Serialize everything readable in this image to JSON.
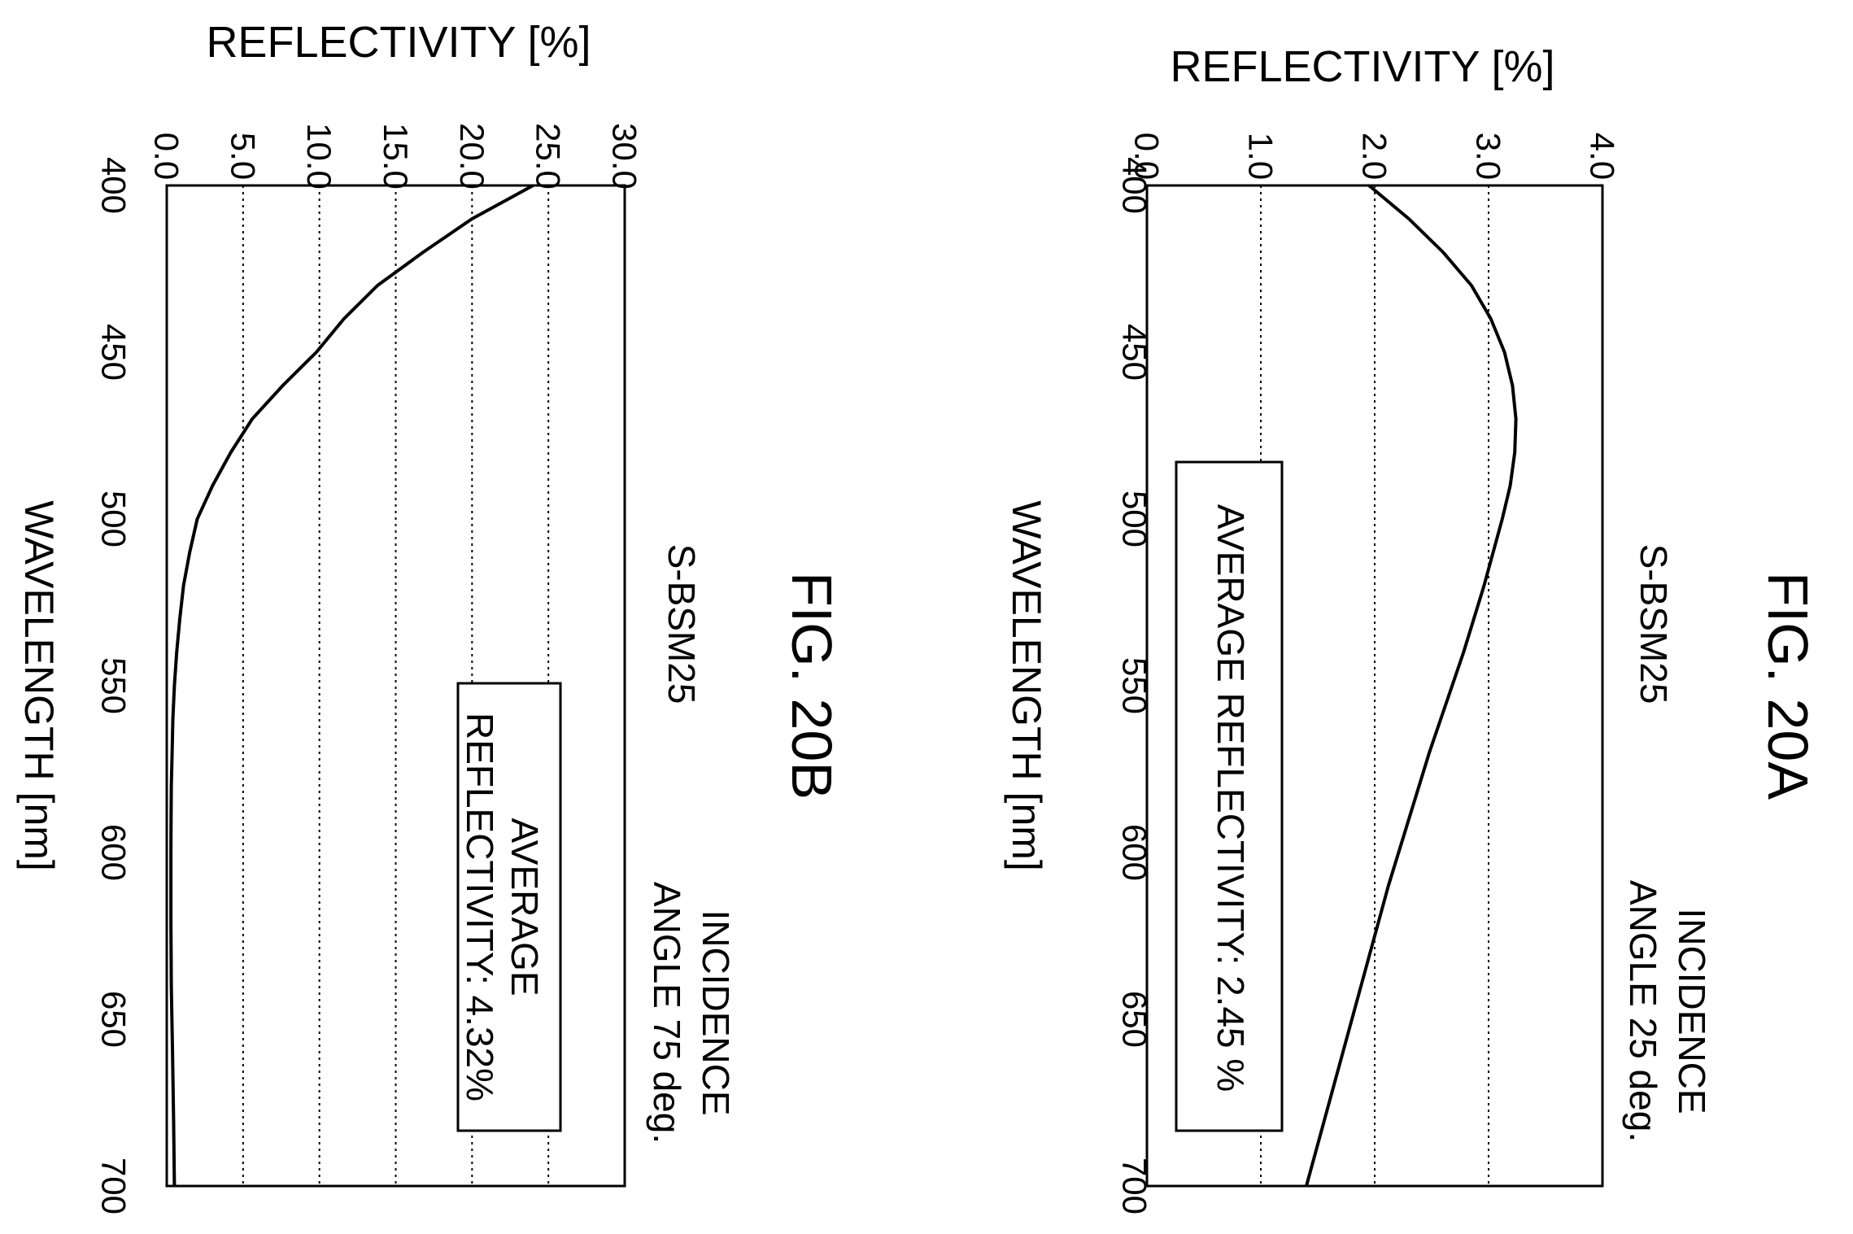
{
  "chart_data": [
    {
      "type": "line",
      "figure_label": "FIG. 20A",
      "material": "S-BSM25",
      "condition": [
        "INCIDENCE",
        "ANGLE 25 deg."
      ],
      "annotation": [
        "AVERAGE REFLECTIVITY: 2.45 %"
      ],
      "xlabel": "WAVELENGTH [nm]",
      "ylabel": "REFLECTIVITY [%]",
      "xlim": [
        400,
        700
      ],
      "ylim": [
        0.0,
        4.0
      ],
      "x_ticks": [
        "400",
        "450",
        "500",
        "550",
        "600",
        "650",
        "700"
      ],
      "y_ticks": [
        "0.0",
        "1.0",
        "2.0",
        "3.0",
        "4.0"
      ],
      "grid": "dotted",
      "series": [
        {
          "x": [
            400,
            410,
            420,
            430,
            440,
            450,
            460,
            470,
            480,
            490,
            500,
            510,
            520,
            530,
            540,
            550,
            560,
            570,
            580,
            590,
            600,
            610,
            620,
            630,
            640,
            650,
            660,
            670,
            680,
            690,
            700
          ],
          "y": [
            1.95,
            2.3,
            2.6,
            2.85,
            3.02,
            3.14,
            3.21,
            3.24,
            3.23,
            3.19,
            3.12,
            3.04,
            2.96,
            2.87,
            2.78,
            2.68,
            2.58,
            2.48,
            2.39,
            2.3,
            2.21,
            2.12,
            2.04,
            1.96,
            1.88,
            1.8,
            1.72,
            1.64,
            1.56,
            1.48,
            1.4
          ]
        }
      ]
    },
    {
      "type": "line",
      "figure_label": "FIG. 20B",
      "material": "S-BSM25",
      "condition": [
        "INCIDENCE",
        "ANGLE 75 deg."
      ],
      "annotation": [
        "AVERAGE",
        "REFLECTIVITY: 4.32%"
      ],
      "xlabel": "WAVELENGTH [nm]",
      "ylabel": "REFLECTIVITY [%]",
      "xlim": [
        400,
        700
      ],
      "ylim": [
        0.0,
        30.0
      ],
      "x_ticks": [
        "400",
        "450",
        "500",
        "550",
        "600",
        "650",
        "700"
      ],
      "y_ticks": [
        "0.0",
        "5.0",
        "10.0",
        "15.0",
        "20.0",
        "25.0",
        "30.0"
      ],
      "grid": "dotted",
      "series": [
        {
          "x": [
            400,
            410,
            420,
            430,
            440,
            450,
            460,
            470,
            480,
            490,
            500,
            510,
            520,
            530,
            540,
            550,
            560,
            570,
            580,
            590,
            600,
            620,
            640,
            660,
            680,
            700
          ],
          "y": [
            24.0,
            20.0,
            16.8,
            13.8,
            11.6,
            9.8,
            7.6,
            5.6,
            4.2,
            3.0,
            2.0,
            1.5,
            1.1,
            0.85,
            0.65,
            0.5,
            0.4,
            0.35,
            0.3,
            0.28,
            0.27,
            0.27,
            0.3,
            0.38,
            0.45,
            0.5
          ]
        }
      ]
    }
  ]
}
